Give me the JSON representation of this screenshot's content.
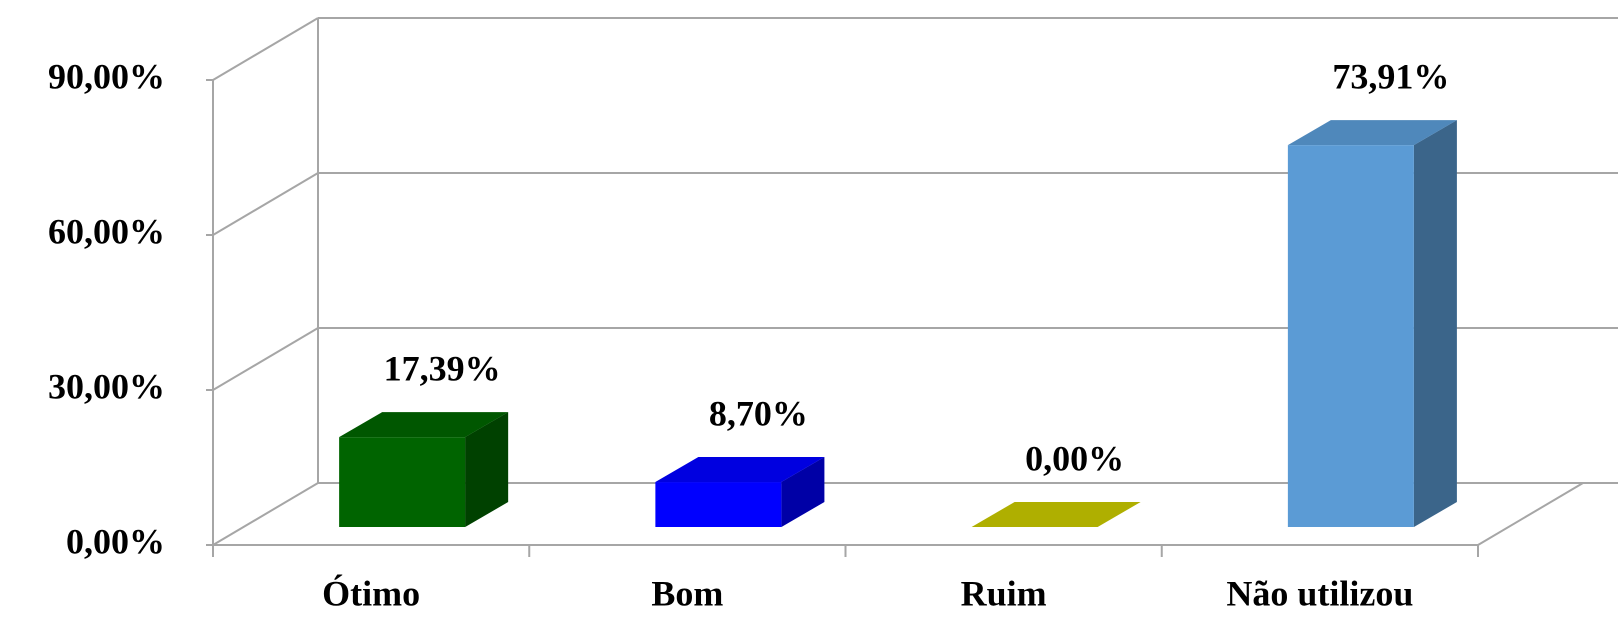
{
  "chart_data": {
    "type": "bar3d",
    "categories": [
      "Ótimo",
      "Bom",
      "Ruim",
      "Não utilizou"
    ],
    "values": [
      17.39,
      8.7,
      0,
      73.91
    ],
    "value_labels": [
      "17,39%",
      "8,70%",
      "0,00%",
      "73,91%"
    ],
    "colors": [
      "#006400",
      "#0000ff",
      "#c8c800",
      "#5b9bd5"
    ],
    "ylim": [
      0,
      90
    ],
    "yticks": [
      {
        "value": 0,
        "label": "0,00%"
      },
      {
        "value": 30,
        "label": "30,00%"
      },
      {
        "value": 60,
        "label": "60,00%"
      },
      {
        "value": 90,
        "label": "90,00%"
      }
    ],
    "grid": true
  }
}
